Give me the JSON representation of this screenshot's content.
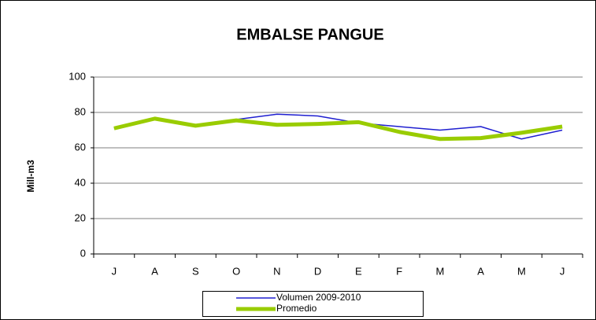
{
  "chart_data": {
    "type": "line",
    "title": "EMBALSE PANGUE",
    "y_label": "Mill-m3",
    "categories": [
      "J",
      "A",
      "S",
      "O",
      "N",
      "D",
      "E",
      "F",
      "M",
      "A",
      "M",
      "J"
    ],
    "series": [
      {
        "name": "Volumen  2009-2010",
        "color": "#1f1fd0",
        "width": 1.5,
        "values": [
          71,
          76.5,
          72.5,
          76,
          79,
          78,
          74,
          72,
          70,
          72,
          65,
          70
        ]
      },
      {
        "name": "Promedio",
        "color": "#99cc00",
        "width": 5,
        "values": [
          71,
          76.5,
          72.5,
          75.5,
          73,
          73.5,
          74.5,
          69,
          65,
          65.5,
          68.5,
          72
        ]
      }
    ],
    "ylim": [
      0,
      100
    ],
    "yticks": [
      0,
      20,
      40,
      60,
      80,
      100
    ],
    "grid": true
  }
}
